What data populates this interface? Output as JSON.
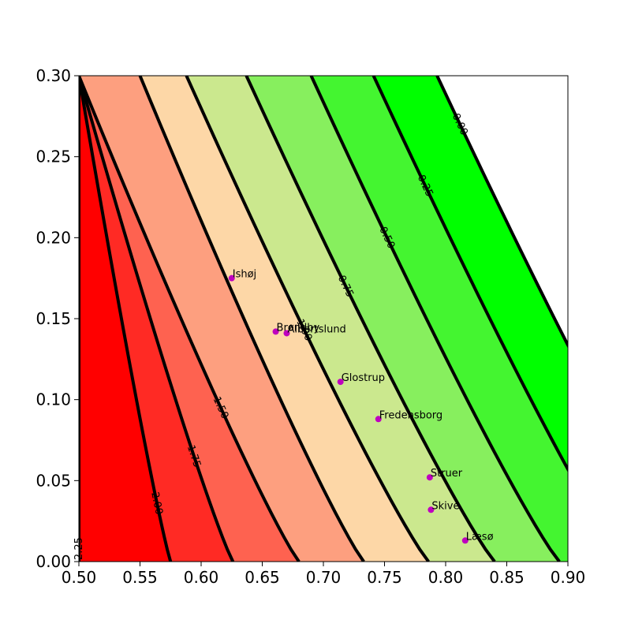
{
  "chart_data": {
    "type": "contour",
    "title": "",
    "xlabel": "",
    "ylabel": "",
    "xlim": [
      0.5,
      0.9
    ],
    "ylim": [
      0.0,
      0.3
    ],
    "x_ticks": [
      "0.50",
      "0.55",
      "0.60",
      "0.65",
      "0.70",
      "0.75",
      "0.80",
      "0.85",
      "0.90"
    ],
    "y_ticks": [
      "0.00",
      "0.05",
      "0.10",
      "0.15",
      "0.20",
      "0.25",
      "0.30"
    ],
    "contour_levels": [
      {
        "level": 2.25,
        "label": "2.25",
        "x_at_y0": 0.5,
        "x_at_y03": 0.5
      },
      {
        "level": 2.0,
        "label": "2.00",
        "x_at_y0": 0.575,
        "x_at_y03": 0.5
      },
      {
        "level": 1.75,
        "label": "1.75",
        "x_at_y0": 0.626,
        "x_at_y03": 0.5
      },
      {
        "level": 1.5,
        "label": "1.50",
        "x_at_y0": 0.68,
        "x_at_y03": 0.5
      },
      {
        "level": 1.25,
        "label": "",
        "x_at_y0": 0.733,
        "x_at_y03": 0.55
      },
      {
        "level": 1.0,
        "label": "1.00",
        "x_at_y0": 0.786,
        "x_at_y03": 0.588
      },
      {
        "level": 0.75,
        "label": "0.75",
        "x_at_y0": 0.84,
        "x_at_y03": 0.637
      },
      {
        "level": 0.5,
        "label": "0.50",
        "x_at_y0": 0.893,
        "x_at_y03": 0.69
      },
      {
        "level": 0.25,
        "label": "0.25",
        "x_at_y0": 0.946,
        "x_at_y03": 0.741
      },
      {
        "level": 0.0,
        "label": "0.00",
        "x_at_y0": 1.0,
        "x_at_y03": 0.793
      }
    ],
    "band_colors": [
      "#ffffff",
      "#00ff00",
      "#44f530",
      "#87ef5e",
      "#cbe88e",
      "#fdd7a7",
      "#fd9f7f",
      "#fe6250",
      "#ff2a24",
      "#ff0000"
    ],
    "points": [
      {
        "name": "Ishøj",
        "x": 0.625,
        "y": 0.175
      },
      {
        "name": "Brøndby",
        "x": 0.661,
        "y": 0.142
      },
      {
        "name": "Albertslund",
        "x": 0.67,
        "y": 0.141
      },
      {
        "name": "Glostrup",
        "x": 0.714,
        "y": 0.111
      },
      {
        "name": "Fredensborg",
        "x": 0.745,
        "y": 0.088
      },
      {
        "name": "Struer",
        "x": 0.787,
        "y": 0.052
      },
      {
        "name": "Skive",
        "x": 0.788,
        "y": 0.032
      },
      {
        "name": "Læsø",
        "x": 0.816,
        "y": 0.013
      }
    ],
    "point_color": "#bf00bf"
  }
}
